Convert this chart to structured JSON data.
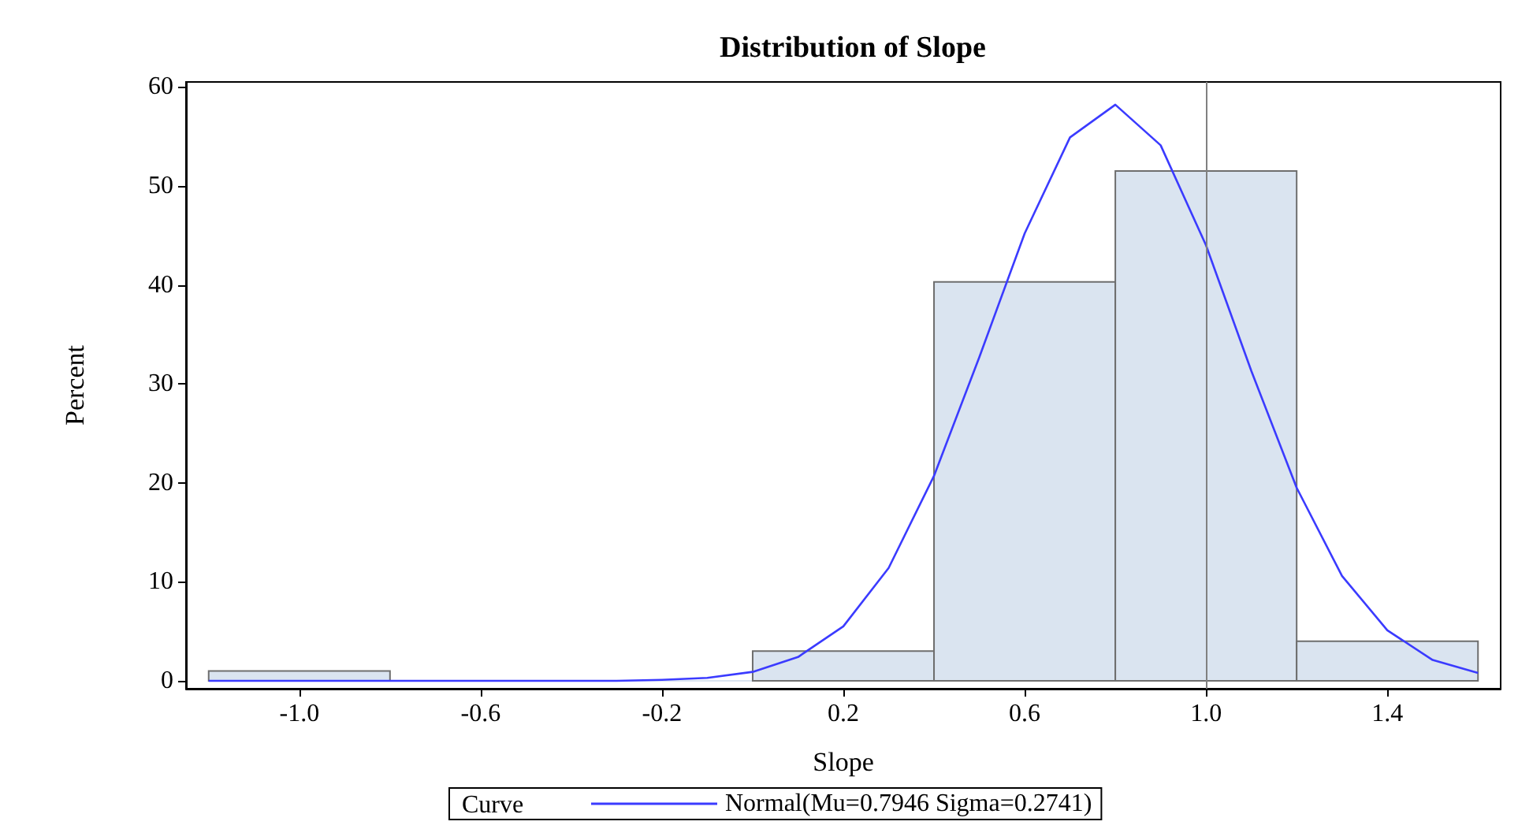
{
  "chart_data": {
    "type": "histogram",
    "title": "Distribution of Slope",
    "xlabel": "Slope",
    "ylabel": "Percent",
    "legend_title": "Curve",
    "legend": "bottom",
    "grid": false,
    "xlim": [
      -1.25,
      1.65
    ],
    "xticks": [
      {
        "value": -1,
        "label": "-1.0"
      },
      -0.6,
      -0.2,
      0.2,
      0.6,
      {
        "value": 1,
        "label": "1.0"
      },
      1.4
    ],
    "ylim": [
      -0.8,
      60.5
    ],
    "yticks": [
      0,
      10,
      20,
      30,
      40,
      50,
      60
    ],
    "ref_lines": [
      {
        "axis": "x",
        "value": 1.0,
        "color": "#808080"
      }
    ],
    "series": [
      {
        "type": "histogram",
        "color": "#dae4f0",
        "bins": [
          -1.2,
          -0.8,
          -0.4,
          0,
          0.4,
          0.8,
          1.2,
          1.6
        ],
        "values": [
          1,
          0,
          0,
          3,
          40.3,
          51.5,
          4
        ]
      },
      {
        "type": "line",
        "name": "Normal(Mu=0.7946 Sigma=0.2741)",
        "color": "#3b3bff",
        "marker": "none",
        "x": [
          -1.2,
          -1.0,
          -0.8,
          -0.6,
          -0.4,
          -0.3,
          -0.2,
          -0.1,
          0,
          0.1,
          0.2,
          0.3,
          0.4,
          0.5,
          0.6,
          0.7,
          0.8,
          0.9,
          1.0,
          1.1,
          1.2,
          1.3,
          1.4,
          1.5,
          1.6
        ],
        "values": [
          0,
          0,
          0,
          0,
          0,
          0,
          0.1,
          0.3,
          0.9,
          2.4,
          5.5,
          11.4,
          20.7,
          32.7,
          45.2,
          54.9,
          58.2,
          54.1,
          44.0,
          31.3,
          19.5,
          10.6,
          5.1,
          2.1,
          0.8
        ]
      }
    ]
  }
}
